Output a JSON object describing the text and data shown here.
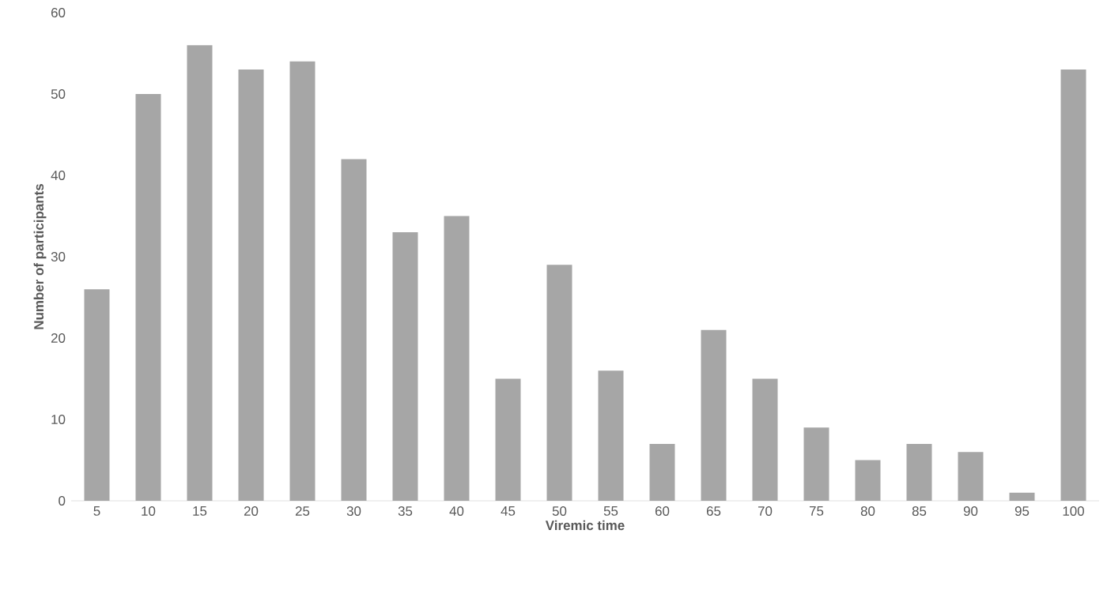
{
  "chart_data": {
    "type": "bar",
    "xlabel": "Viremic time",
    "ylabel": "Number of participants",
    "categories": [
      "5",
      "10",
      "15",
      "20",
      "25",
      "30",
      "35",
      "40",
      "45",
      "50",
      "55",
      "60",
      "65",
      "70",
      "75",
      "80",
      "85",
      "90",
      "95",
      "100"
    ],
    "values": [
      26,
      50,
      56,
      53,
      54,
      42,
      33,
      35,
      15,
      29,
      16,
      7,
      21,
      15,
      9,
      5,
      7,
      6,
      1,
      53
    ],
    "color": "#a6a6a6",
    "ylim": [
      0,
      60
    ],
    "yticks": [
      0,
      10,
      20,
      30,
      40,
      50,
      60
    ],
    "grid": false
  }
}
